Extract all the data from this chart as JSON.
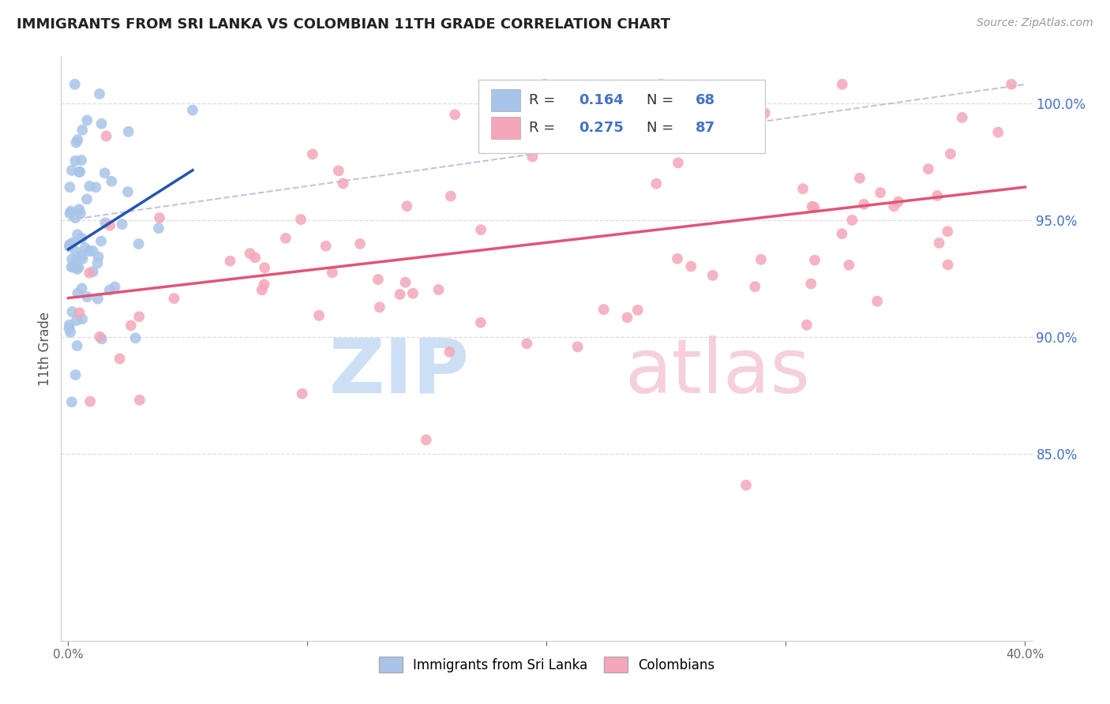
{
  "title": "IMMIGRANTS FROM SRI LANKA VS COLOMBIAN 11TH GRADE CORRELATION CHART",
  "source": "Source: ZipAtlas.com",
  "ylabel": "11th Grade",
  "sri_lanka_color": "#a8c4e8",
  "colombian_color": "#f4a7b9",
  "sri_lanka_line_color": "#2255b0",
  "colombian_line_color": "#e05575",
  "background_color": "#ffffff",
  "grid_color": "#dddddd",
  "right_tick_color": "#4472c4",
  "xlim": [
    -0.003,
    0.403
  ],
  "ylim": [
    77.0,
    102.0
  ],
  "yticks": [
    85.0,
    90.0,
    95.0,
    100.0
  ],
  "xticks": [
    0.0,
    0.1,
    0.2,
    0.3,
    0.4
  ],
  "xticklabels": [
    "0.0%",
    "",
    "",
    "",
    "40.0%"
  ],
  "yticklabels_right": [
    "85.0%",
    "90.0%",
    "95.0%",
    "100.0%"
  ],
  "legend_r1": "0.164",
  "legend_n1": "68",
  "legend_r2": "0.275",
  "legend_n2": "87",
  "watermark_zip_color": "#ccdff5",
  "watermark_atlas_color": "#f5d0dc",
  "sl_seed": 77,
  "col_seed": 55,
  "title_fontsize": 13,
  "axis_label_fontsize": 11,
  "legend_fontsize": 13,
  "marker_size": 100
}
